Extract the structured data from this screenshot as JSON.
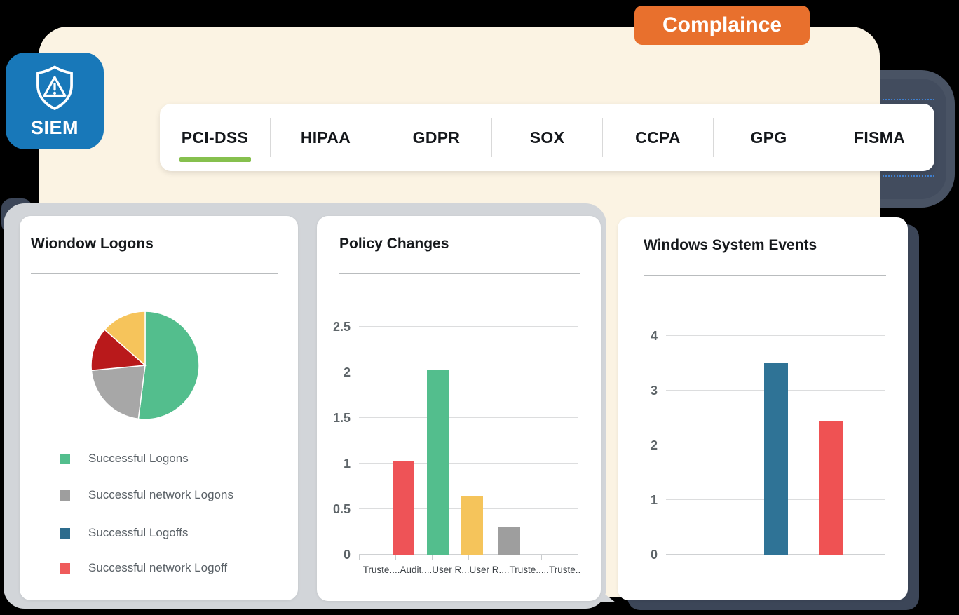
{
  "page": {
    "background_color": "#000000",
    "panel_color": "#FBF3E3"
  },
  "badge": {
    "label": "Complaince",
    "color": "#E8702D"
  },
  "app_icon": {
    "label": "SIEM",
    "color": "#1878B9",
    "icon": "shield-alert-icon"
  },
  "tabs": {
    "items": [
      {
        "label": "PCI-DSS",
        "active": true
      },
      {
        "label": "HIPAA",
        "active": false
      },
      {
        "label": "GDPR",
        "active": false
      },
      {
        "label": "SOX",
        "active": false
      },
      {
        "label": "CCPA",
        "active": false
      },
      {
        "label": "GPG",
        "active": false
      },
      {
        "label": "FISMA",
        "active": false
      }
    ],
    "active_underline_color": "#86C04E"
  },
  "cards": [
    {
      "title": "Wiondow Logons",
      "legend": [
        {
          "label": "Successful Logons",
          "color": "#53BE8D"
        },
        {
          "label": "Successful network Logons",
          "color": "#9E9E9E"
        },
        {
          "label": "Successful Logoffs",
          "color": "#2D6C8D"
        },
        {
          "label": "Successful network Logoff",
          "color": "#EF5B5B"
        }
      ]
    },
    {
      "title": "Policy Changes"
    },
    {
      "title": "Windows System Events"
    }
  ],
  "chart_data": [
    {
      "type": "pie",
      "title": "Wiondow Logons",
      "slices": [
        {
          "label": "Successful Logons",
          "percent": 52,
          "color": "#53BE8D"
        },
        {
          "label": "Successful network Logons",
          "percent": 21.5,
          "color": "#A7A7A7"
        },
        {
          "label": "Successful network Logoff",
          "percent": 13,
          "color": "#B9191B"
        },
        {
          "label": "Successful Logoffs",
          "percent": 13.5,
          "color": "#F6C45B"
        }
      ],
      "legend_position": "bottom"
    },
    {
      "type": "bar",
      "title": "Policy Changes",
      "categories": [
        "Truste....",
        "Audit....",
        "User R...",
        "User R....",
        "Truste.....",
        "Truste.."
      ],
      "values": [
        null,
        1.02,
        2.03,
        0.64,
        0.31,
        null
      ],
      "colors": [
        null,
        "#EE5357",
        "#53BE8D",
        "#F5C45B",
        "#9E9E9E",
        null
      ],
      "ylim": [
        0,
        2.5
      ],
      "yticks": [
        0,
        0.5,
        1,
        1.5,
        2,
        2.5
      ],
      "grid": true
    },
    {
      "type": "bar",
      "title": "Windows System Events",
      "categories": [
        "",
        ""
      ],
      "values": [
        3.5,
        2.45
      ],
      "colors": [
        "#2F7396",
        "#EF5253"
      ],
      "ylim": [
        0,
        4
      ],
      "yticks": [
        0,
        1,
        2,
        3,
        4
      ],
      "grid": true
    }
  ]
}
